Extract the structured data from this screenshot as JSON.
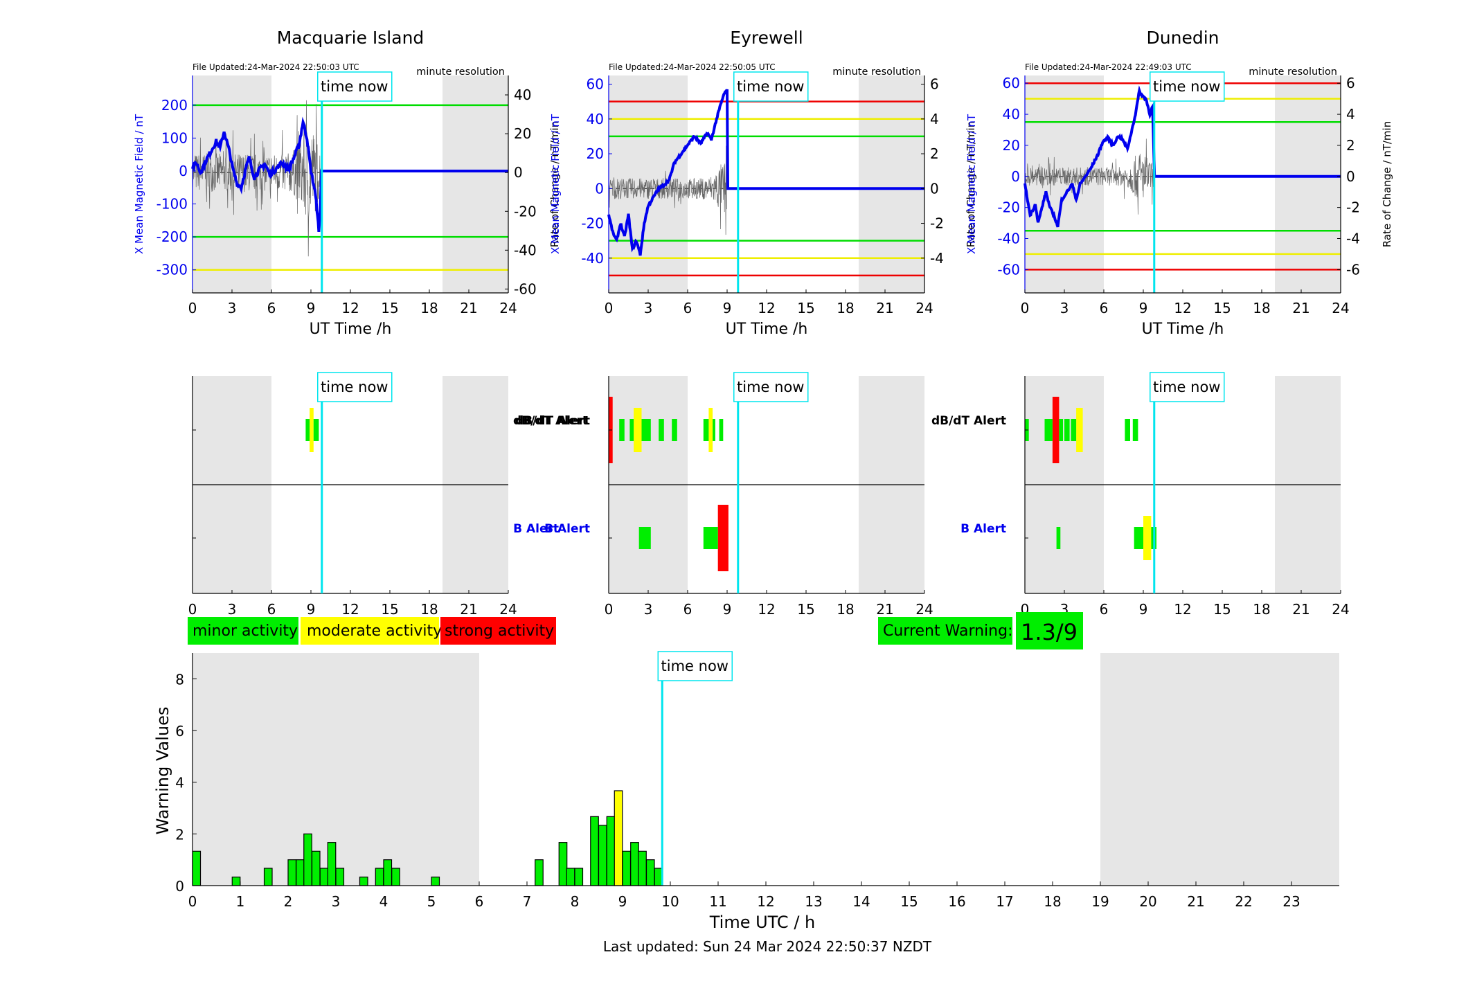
{
  "stations": [
    {
      "name": "Macquarie Island",
      "file_updated": "File Updated:24-Mar-2024 22:50:03 UTC",
      "resolution": "minute resolution",
      "ylabel_left": "X Mean Magnetic Field / nT",
      "ylabel_right": "Rate of Change / nT/min",
      "xlabel": "UT Time /h",
      "left_ticks": [
        -300,
        -200,
        -100,
        0,
        100,
        200
      ],
      "right_ticks": [
        -60,
        -40,
        -20,
        0,
        20,
        40
      ],
      "alert_dbdt": [
        [
          8.6,
          8.9,
          "g"
        ],
        [
          8.9,
          9.2,
          "y"
        ],
        [
          9.2,
          9.6,
          "g"
        ]
      ],
      "alert_b": []
    },
    {
      "name": "Eyrewell",
      "file_updated": "File Updated:24-Mar-2024 22:50:05 UTC",
      "resolution": "minute resolution",
      "ylabel_left": "X Mean Magnetic Field / nT",
      "ylabel_right": "Rate of Change / nT/min",
      "xlabel": "UT Time /h",
      "left_ticks": [
        -40,
        -20,
        0,
        20,
        40,
        60
      ],
      "right_ticks": [
        -4,
        -2,
        0,
        2,
        4,
        6
      ],
      "alert_dbdt": [
        [
          0,
          0.3,
          "r"
        ],
        [
          0.8,
          1.2,
          "g"
        ],
        [
          1.6,
          1.9,
          "g"
        ],
        [
          1.9,
          2.5,
          "y"
        ],
        [
          2.5,
          3.2,
          "g"
        ],
        [
          3.8,
          4.2,
          "g"
        ],
        [
          4.8,
          5.2,
          "g"
        ],
        [
          7.2,
          7.6,
          "g"
        ],
        [
          7.6,
          7.9,
          "y"
        ],
        [
          7.9,
          8.1,
          "g"
        ],
        [
          8.4,
          8.7,
          "g"
        ]
      ],
      "alert_b": [
        [
          2.3,
          3.2,
          "g"
        ],
        [
          7.2,
          8.3,
          "g"
        ],
        [
          8.3,
          9.1,
          "r"
        ]
      ]
    },
    {
      "name": "Dunedin",
      "file_updated": "File Updated:24-Mar-2024 22:49:03 UTC",
      "resolution": "minute resolution",
      "ylabel_left": "X Mean Magnetic Field / nT",
      "ylabel_right": "Rate of Change / nT/min",
      "xlabel": "UT Time /h",
      "left_ticks": [
        -60,
        -40,
        -20,
        0,
        20,
        40,
        60
      ],
      "right_ticks": [
        -6,
        -4,
        -2,
        0,
        2,
        4,
        6
      ],
      "alert_dbdt": [
        [
          0,
          0.3,
          "g"
        ],
        [
          1.5,
          2.1,
          "g"
        ],
        [
          2.1,
          2.6,
          "r"
        ],
        [
          2.6,
          2.9,
          "g"
        ],
        [
          3.0,
          3.4,
          "g"
        ],
        [
          3.5,
          3.9,
          "g"
        ],
        [
          3.9,
          4.4,
          "y"
        ],
        [
          7.6,
          8.0,
          "g"
        ],
        [
          8.2,
          8.6,
          "g"
        ]
      ],
      "alert_b": [
        [
          2.4,
          2.7,
          "g"
        ],
        [
          8.3,
          9.0,
          "g"
        ],
        [
          9.0,
          9.6,
          "y"
        ],
        [
          9.6,
          10.0,
          "g"
        ]
      ]
    }
  ],
  "x_ticks": [
    0,
    3,
    6,
    9,
    12,
    15,
    18,
    21,
    24
  ],
  "time_now_label": "time now",
  "alert_labels": {
    "dbdt": "dB/dT Alert",
    "b": "B Alert"
  },
  "legend": {
    "minor": "minor activity",
    "moderate": "moderate activity",
    "strong": "strong activity"
  },
  "current_warning": {
    "label": "Current Warning:",
    "value": "1.3/9"
  },
  "colors": {
    "minor": "#00ee00",
    "moderate": "#ffff00",
    "strong": "#ff0000",
    "timenow": "#00e5ee",
    "shade": "#e6e6e6",
    "mean": "#0000ee"
  },
  "chart_data": {
    "type": "bar",
    "title": "",
    "xlabel": "Time UTC / h",
    "ylabel": "Warning Values",
    "xlim": [
      0,
      24
    ],
    "ylim": [
      0,
      9
    ],
    "x_ticks": [
      0,
      1,
      2,
      3,
      4,
      5,
      6,
      7,
      8,
      9,
      10,
      11,
      12,
      13,
      14,
      15,
      16,
      17,
      18,
      19,
      20,
      21,
      22,
      23
    ],
    "y_ticks": [
      0,
      2,
      4,
      6,
      8
    ],
    "time_now": 9.83,
    "shaded_ranges": [
      [
        0,
        6
      ],
      [
        19,
        24
      ]
    ],
    "bars": [
      {
        "x": 0.0,
        "v": 1.33
      },
      {
        "x": 0.83,
        "v": 0.33
      },
      {
        "x": 1.5,
        "v": 0.67
      },
      {
        "x": 2.0,
        "v": 1.0
      },
      {
        "x": 2.17,
        "v": 1.0
      },
      {
        "x": 2.33,
        "v": 2.0
      },
      {
        "x": 2.5,
        "v": 1.33
      },
      {
        "x": 2.67,
        "v": 0.67
      },
      {
        "x": 2.83,
        "v": 1.67
      },
      {
        "x": 3.0,
        "v": 0.67
      },
      {
        "x": 3.5,
        "v": 0.33
      },
      {
        "x": 3.83,
        "v": 0.67
      },
      {
        "x": 4.0,
        "v": 1.0
      },
      {
        "x": 4.17,
        "v": 0.67
      },
      {
        "x": 5.0,
        "v": 0.33
      },
      {
        "x": 7.17,
        "v": 1.0
      },
      {
        "x": 7.67,
        "v": 1.67
      },
      {
        "x": 7.83,
        "v": 0.67
      },
      {
        "x": 8.0,
        "v": 0.67
      },
      {
        "x": 8.33,
        "v": 2.67
      },
      {
        "x": 8.5,
        "v": 2.33
      },
      {
        "x": 8.67,
        "v": 2.67
      },
      {
        "x": 8.83,
        "v": 3.67
      },
      {
        "x": 9.0,
        "v": 1.33
      },
      {
        "x": 9.17,
        "v": 1.67
      },
      {
        "x": 9.33,
        "v": 1.33
      },
      {
        "x": 9.5,
        "v": 1.0
      },
      {
        "x": 9.67,
        "v": 0.67
      }
    ],
    "footer": "Last updated: Sun 24 Mar 2024 22:50:37 NZDT"
  }
}
